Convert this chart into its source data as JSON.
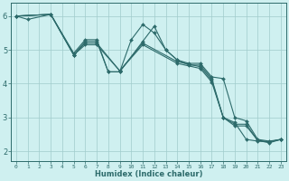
{
  "xlabel": "Humidex (Indice chaleur)",
  "bg_color": "#cff0f0",
  "line_color": "#2d6b6b",
  "grid_color": "#a0cccc",
  "xlim": [
    -0.5,
    23.5
  ],
  "ylim": [
    1.7,
    6.4
  ],
  "yticks": [
    2,
    3,
    4,
    5,
    6
  ],
  "xticks": [
    0,
    1,
    2,
    3,
    4,
    5,
    6,
    7,
    8,
    9,
    10,
    11,
    12,
    13,
    14,
    15,
    16,
    17,
    18,
    19,
    20,
    21,
    22,
    23
  ],
  "lines": [
    {
      "x": [
        0,
        1,
        3,
        5,
        6,
        7,
        8,
        9,
        10,
        11,
        12,
        13,
        14,
        15,
        16,
        17,
        18,
        19,
        20,
        21,
        22,
        23
      ],
      "y": [
        6.0,
        5.9,
        6.05,
        4.9,
        5.3,
        5.3,
        4.35,
        4.35,
        5.3,
        5.75,
        5.5,
        5.0,
        4.7,
        4.6,
        4.6,
        4.2,
        4.15,
        3.0,
        2.9,
        2.35,
        2.3,
        2.35
      ]
    },
    {
      "x": [
        0,
        3,
        5,
        6,
        7,
        8,
        9,
        11,
        12,
        13,
        14,
        15,
        16,
        17,
        18,
        19,
        20,
        21,
        22,
        23
      ],
      "y": [
        6.0,
        6.05,
        4.85,
        5.25,
        5.25,
        4.35,
        4.35,
        5.25,
        5.7,
        5.0,
        4.7,
        4.55,
        4.55,
        4.15,
        3.0,
        2.85,
        2.35,
        2.3,
        2.28,
        2.35
      ]
    },
    {
      "x": [
        0,
        3,
        5,
        6,
        7,
        9,
        11,
        14,
        16,
        17,
        18,
        19,
        20,
        21,
        22,
        23
      ],
      "y": [
        6.0,
        6.05,
        4.85,
        5.2,
        5.2,
        4.38,
        5.2,
        4.65,
        4.5,
        4.1,
        3.0,
        2.8,
        2.8,
        2.32,
        2.28,
        2.35
      ]
    },
    {
      "x": [
        0,
        3,
        5,
        6,
        7,
        9,
        11,
        14,
        16,
        17,
        18,
        19,
        20,
        21,
        22,
        23
      ],
      "y": [
        6.0,
        6.05,
        4.85,
        5.15,
        5.15,
        4.38,
        5.15,
        4.6,
        4.45,
        4.05,
        3.0,
        2.75,
        2.75,
        2.32,
        2.25,
        2.35
      ]
    }
  ]
}
